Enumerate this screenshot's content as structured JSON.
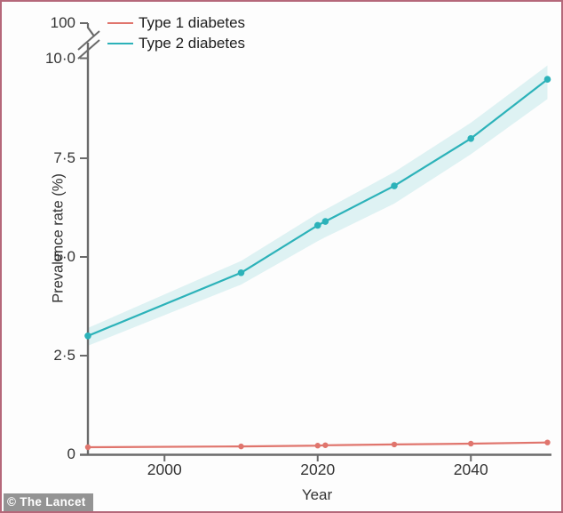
{
  "frame": {
    "border_color": "#b5687a",
    "background": "#fdfdfd"
  },
  "watermark": "© The Lancet",
  "legend": {
    "items": [
      {
        "label": "Type 1 diabetes",
        "color": "#e0756d"
      },
      {
        "label": "Type 2 diabetes",
        "color": "#2cb2b9"
      }
    ]
  },
  "chart_data": {
    "type": "line",
    "title": "",
    "xlabel": "Year",
    "ylabel": "Prevalence rate (%)",
    "x": [
      1990,
      2010,
      2020,
      2021,
      2030,
      2040,
      2050
    ],
    "series": [
      {
        "name": "Type 1 diabetes",
        "color": "#e0756d",
        "values": [
          0.18,
          0.2,
          0.22,
          0.23,
          0.25,
          0.27,
          0.3
        ]
      },
      {
        "name": "Type 2 diabetes",
        "color": "#2cb2b9",
        "values": [
          3.0,
          4.6,
          5.8,
          5.9,
          6.8,
          8.0,
          9.5
        ],
        "band": {
          "upper": [
            3.2,
            4.9,
            6.1,
            6.2,
            7.15,
            8.4,
            9.85
          ],
          "lower": [
            2.75,
            4.3,
            5.4,
            5.5,
            6.35,
            7.6,
            9.0
          ],
          "opacity": 0.15
        }
      }
    ],
    "y_axis": {
      "ticks_linear": [
        0,
        2.5,
        5.0,
        7.5,
        10.0
      ],
      "tick_labels": [
        "0",
        "2·5",
        "5·0",
        "7·5",
        "10·0"
      ],
      "break_label": "100",
      "range": [
        0,
        10.4
      ],
      "axis_color": "#6a6a6a"
    },
    "x_axis": {
      "ticks": [
        2000,
        2020,
        2040
      ],
      "tick_labels": [
        "2000",
        "2020",
        "2040"
      ],
      "range": [
        1990,
        2050.5
      ],
      "axis_color": "#6a6a6a"
    },
    "grid": false,
    "legend_position": "top-left"
  }
}
